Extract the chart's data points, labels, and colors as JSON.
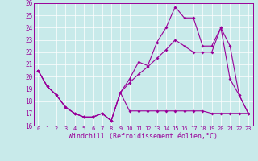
{
  "xlabel": "Windchill (Refroidissement éolien,°C)",
  "bg_color": "#c8eaea",
  "line_color": "#990099",
  "xlim": [
    -0.5,
    23.5
  ],
  "ylim": [
    16,
    26
  ],
  "xticks": [
    0,
    1,
    2,
    3,
    4,
    5,
    6,
    7,
    8,
    9,
    10,
    11,
    12,
    13,
    14,
    15,
    16,
    17,
    18,
    19,
    20,
    21,
    22,
    23
  ],
  "yticks": [
    16,
    17,
    18,
    19,
    20,
    21,
    22,
    23,
    24,
    25,
    26
  ],
  "line1_x": [
    0,
    1,
    2,
    3,
    4,
    5,
    6,
    7,
    8,
    9,
    10,
    11,
    12,
    13,
    14,
    15,
    16,
    17,
    18,
    19,
    20,
    21,
    22,
    23
  ],
  "line1_y": [
    20.5,
    19.2,
    18.5,
    17.5,
    17.0,
    16.7,
    16.7,
    17.0,
    16.4,
    18.7,
    17.2,
    17.2,
    17.2,
    17.2,
    17.2,
    17.2,
    17.2,
    17.2,
    17.2,
    17.0,
    17.0,
    17.0,
    17.0,
    17.0
  ],
  "line2_x": [
    0,
    1,
    2,
    3,
    4,
    5,
    6,
    7,
    8,
    9,
    10,
    11,
    12,
    13,
    14,
    15,
    16,
    17,
    18,
    19,
    20,
    21,
    22,
    23
  ],
  "line2_y": [
    20.5,
    19.2,
    18.5,
    17.5,
    17.0,
    16.7,
    16.7,
    17.0,
    16.4,
    18.7,
    19.8,
    21.2,
    20.9,
    22.8,
    24.0,
    25.7,
    24.8,
    24.8,
    22.5,
    22.5,
    24.0,
    19.8,
    18.5,
    17.0
  ],
  "line3_x": [
    0,
    1,
    2,
    3,
    4,
    5,
    6,
    7,
    8,
    9,
    10,
    11,
    12,
    13,
    14,
    15,
    16,
    17,
    18,
    19,
    20,
    21,
    22,
    23
  ],
  "line3_y": [
    20.5,
    19.2,
    18.5,
    17.5,
    17.0,
    16.7,
    16.7,
    17.0,
    16.4,
    18.7,
    19.5,
    20.2,
    20.8,
    21.5,
    22.2,
    23.0,
    22.5,
    22.0,
    22.0,
    22.0,
    24.0,
    22.5,
    18.5,
    17.0
  ]
}
